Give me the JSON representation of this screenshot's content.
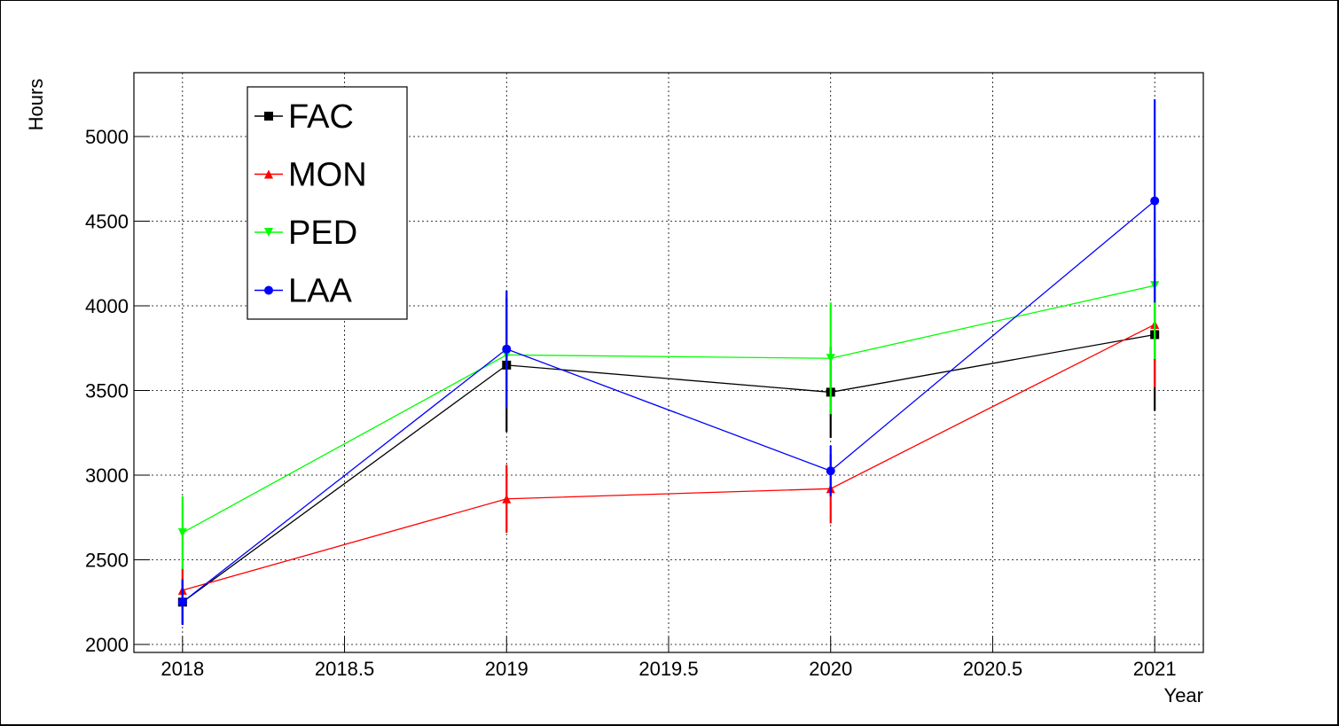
{
  "chart_data": {
    "type": "line",
    "x_label": "Year",
    "y_label": "Hours",
    "x": [
      2018,
      2019,
      2020,
      2021
    ],
    "xlim": [
      2017.85,
      2021.15
    ],
    "ylim": [
      1953,
      5377
    ],
    "xticks": [
      2018,
      2018.5,
      2019,
      2019.5,
      2020,
      2020.5,
      2021
    ],
    "yticks": [
      2000,
      2500,
      3000,
      3500,
      4000,
      4500,
      5000
    ],
    "grid": true,
    "legend": "upper left",
    "series": [
      {
        "name": "FAC",
        "color": "#000000",
        "marker": "square",
        "values": [
          2250,
          3650,
          3490,
          3830
        ],
        "error": [
          130,
          395,
          270,
          450
        ]
      },
      {
        "name": "MON",
        "color": "#ff0000",
        "marker": "triangle-up",
        "values": [
          2320,
          2860,
          2920,
          3890
        ],
        "error": [
          130,
          200,
          205,
          370
        ]
      },
      {
        "name": "PED",
        "color": "#00ff00",
        "marker": "triangle-down",
        "values": [
          2660,
          3710,
          3690,
          4120
        ],
        "error": [
          215,
          310,
          330,
          435
        ]
      },
      {
        "name": "LAA",
        "color": "#0000ff",
        "marker": "circle",
        "values": [
          2250,
          3745,
          3025,
          4620
        ],
        "error": [
          135,
          345,
          150,
          600
        ]
      }
    ]
  }
}
